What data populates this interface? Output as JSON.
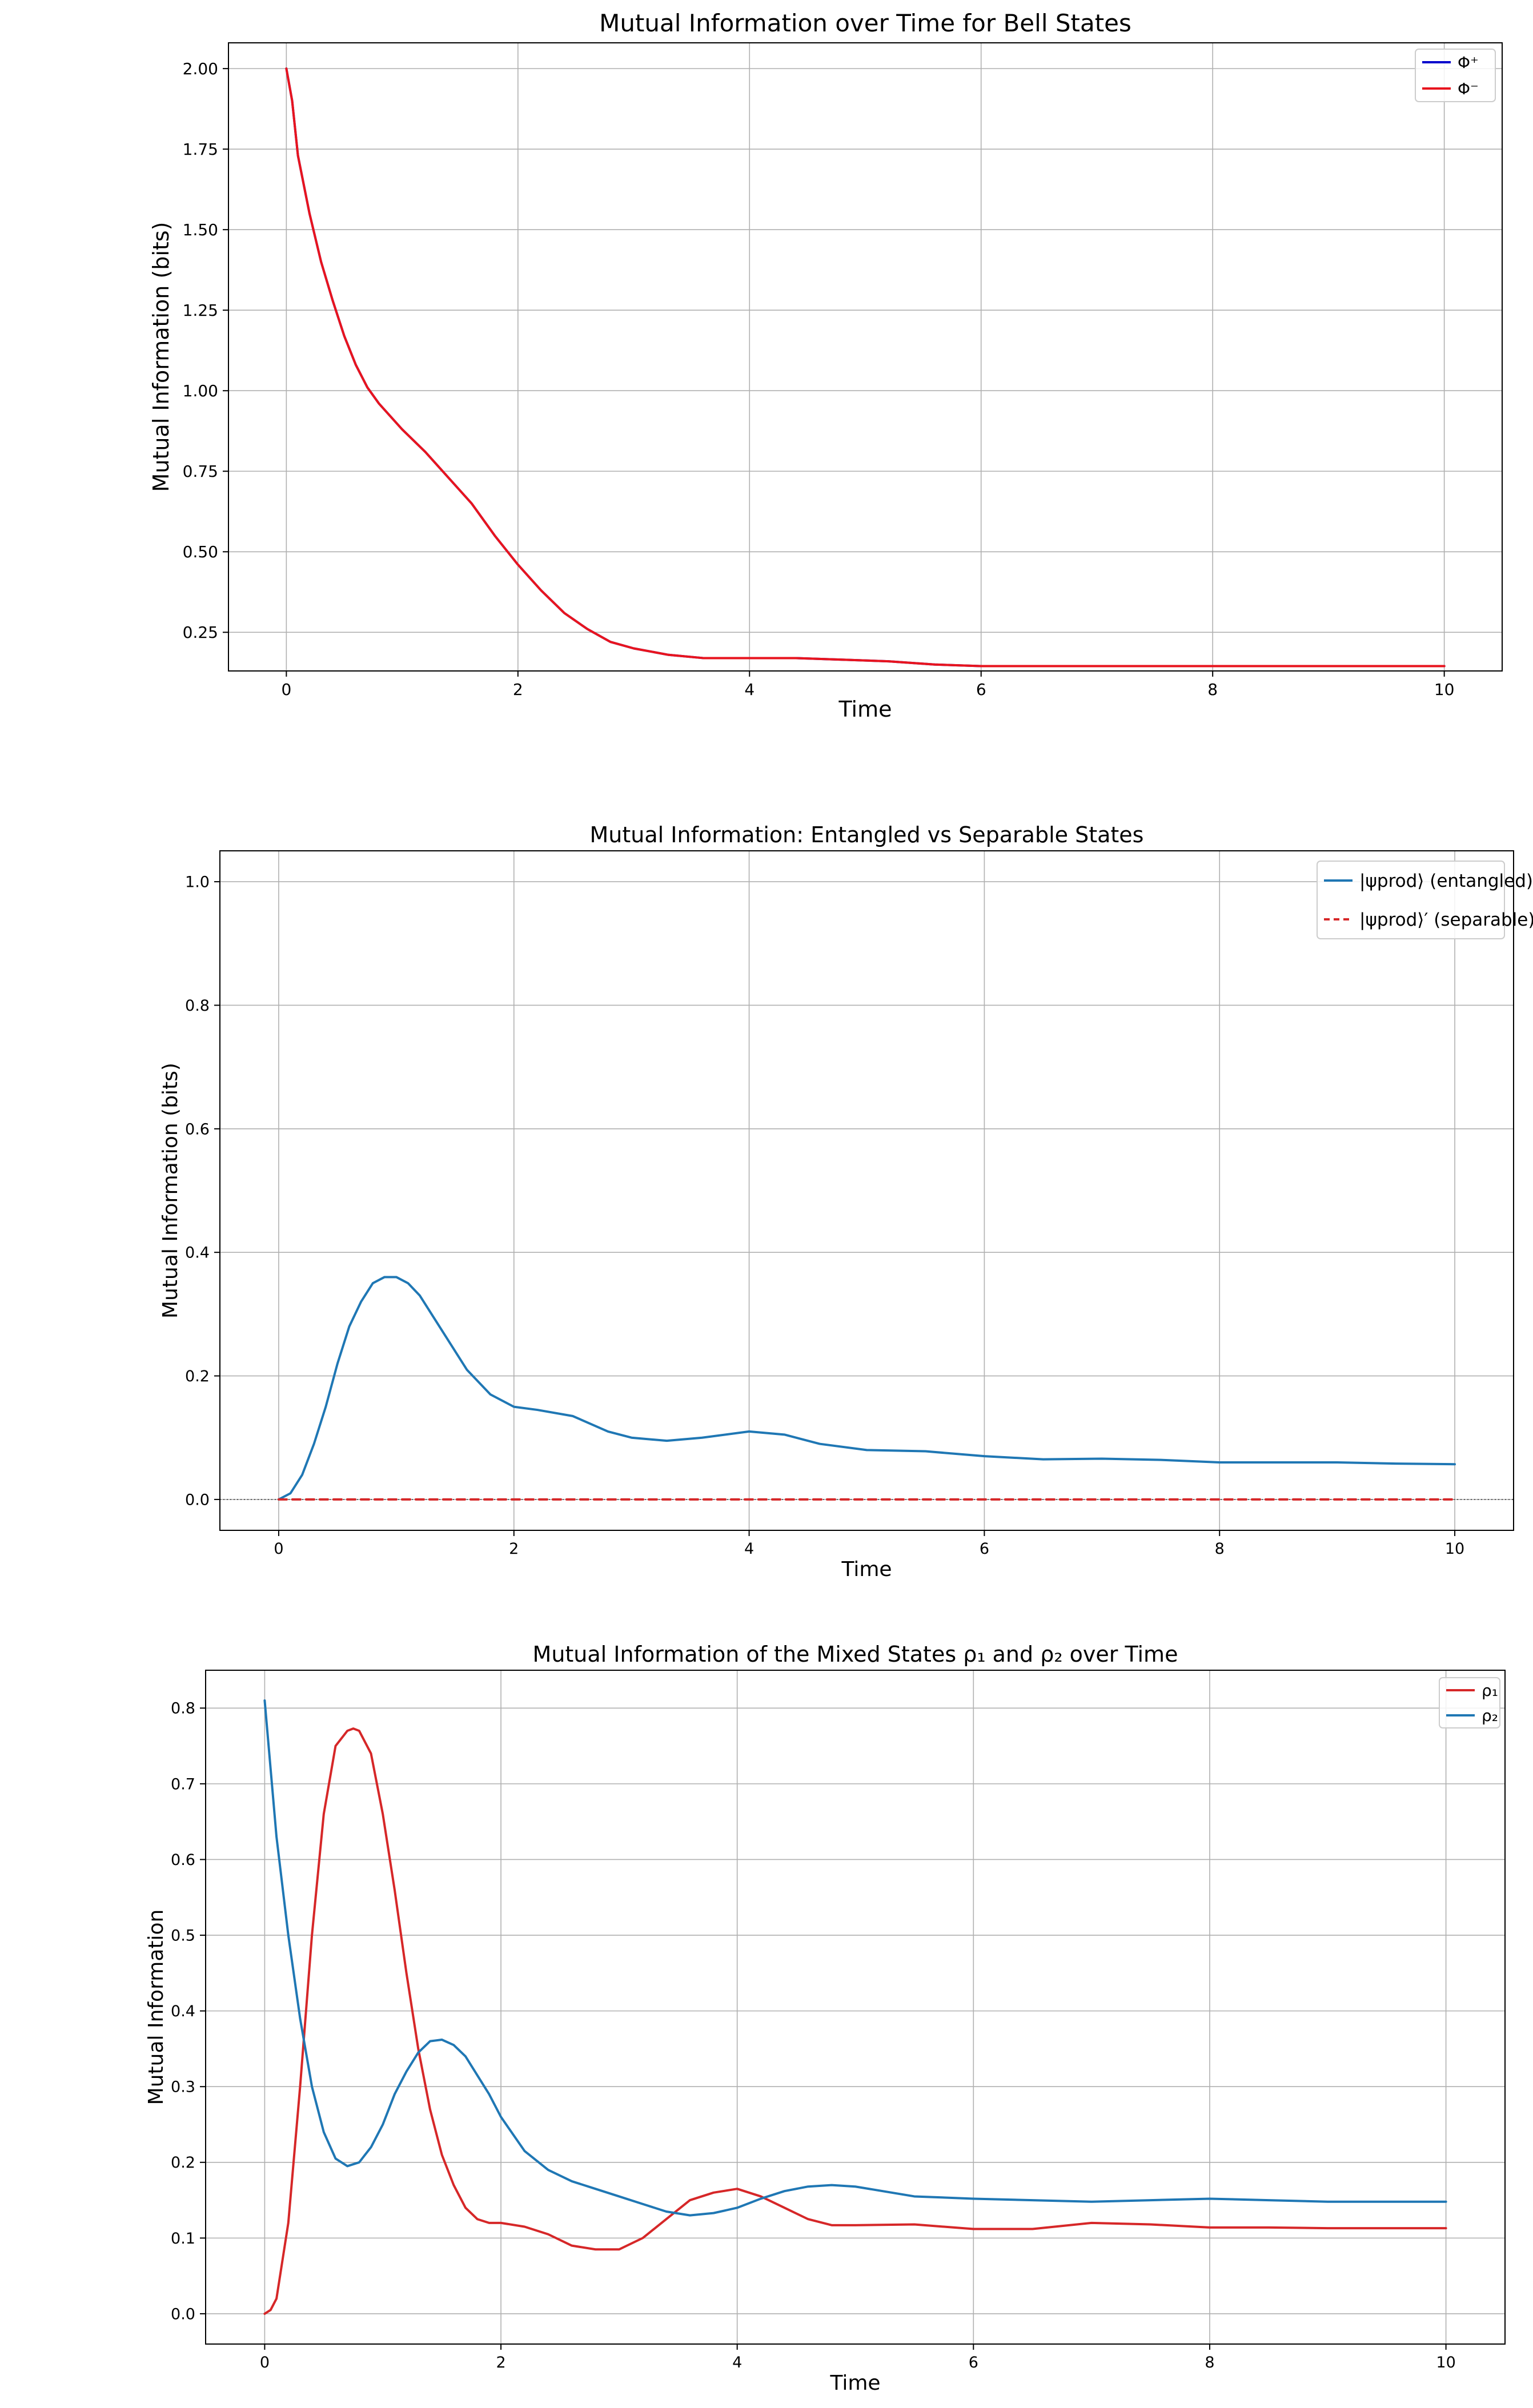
{
  "chart_data": [
    {
      "type": "line",
      "title": "Mutual Information over Time for Bell States",
      "xlabel": "Time",
      "ylabel": "Mutual Information (bits)",
      "xlim": [
        -0.5,
        10.5
      ],
      "ylim": [
        0.13,
        2.08
      ],
      "xticks": [
        0,
        2,
        4,
        6,
        8,
        10
      ],
      "xtick_labels": [
        "0",
        "2",
        "4",
        "6",
        "8",
        "10"
      ],
      "yticks": [
        0.25,
        0.5,
        0.75,
        1.0,
        1.25,
        1.5,
        1.75,
        2.0
      ],
      "ytick_labels": [
        "0.25",
        "0.50",
        "0.75",
        "1.00",
        "1.25",
        "1.50",
        "1.75",
        "2.00"
      ],
      "grid": true,
      "legend_position": "top-right",
      "series": [
        {
          "name": "Φ⁺",
          "color": "#0000cc",
          "style": "solid",
          "x": [
            0,
            0.05,
            0.1,
            0.2,
            0.3,
            0.4,
            0.5,
            0.6,
            0.7,
            0.8,
            1.0,
            1.2,
            1.4,
            1.6,
            1.8,
            2.0,
            2.2,
            2.4,
            2.6,
            2.8,
            3.0,
            3.3,
            3.6,
            4.0,
            4.4,
            4.8,
            5.2,
            5.6,
            6.0,
            6.5,
            7.0,
            7.5,
            8.0,
            8.5,
            9.0,
            9.5,
            10.0
          ],
          "y": [
            2.0,
            1.9,
            1.73,
            1.55,
            1.4,
            1.28,
            1.17,
            1.08,
            1.01,
            0.96,
            0.88,
            0.81,
            0.73,
            0.65,
            0.55,
            0.46,
            0.38,
            0.31,
            0.26,
            0.22,
            0.2,
            0.18,
            0.17,
            0.17,
            0.17,
            0.165,
            0.16,
            0.15,
            0.145,
            0.145,
            0.145,
            0.145,
            0.145,
            0.145,
            0.145,
            0.145,
            0.145
          ]
        },
        {
          "name": "Φ⁻",
          "color": "#e8141e",
          "style": "solid",
          "x": [
            0,
            0.05,
            0.1,
            0.2,
            0.3,
            0.4,
            0.5,
            0.6,
            0.7,
            0.8,
            1.0,
            1.2,
            1.4,
            1.6,
            1.8,
            2.0,
            2.2,
            2.4,
            2.6,
            2.8,
            3.0,
            3.3,
            3.6,
            4.0,
            4.4,
            4.8,
            5.2,
            5.6,
            6.0,
            6.5,
            7.0,
            7.5,
            8.0,
            8.5,
            9.0,
            9.5,
            10.0
          ],
          "y": [
            2.0,
            1.9,
            1.73,
            1.55,
            1.4,
            1.28,
            1.17,
            1.08,
            1.01,
            0.96,
            0.88,
            0.81,
            0.73,
            0.65,
            0.55,
            0.46,
            0.38,
            0.31,
            0.26,
            0.22,
            0.2,
            0.18,
            0.17,
            0.17,
            0.17,
            0.165,
            0.16,
            0.15,
            0.145,
            0.145,
            0.145,
            0.145,
            0.145,
            0.145,
            0.145,
            0.145,
            0.145
          ]
        }
      ]
    },
    {
      "type": "line",
      "title": "Mutual Information: Entangled vs Separable States",
      "xlabel": "Time",
      "ylabel": "Mutual Information (bits)",
      "xlim": [
        -0.5,
        10.5
      ],
      "ylim": [
        -0.05,
        1.05
      ],
      "xticks": [
        0,
        2,
        4,
        6,
        8,
        10
      ],
      "xtick_labels": [
        "0",
        "2",
        "4",
        "6",
        "8",
        "10"
      ],
      "yticks": [
        0.0,
        0.2,
        0.4,
        0.6,
        0.8,
        1.0
      ],
      "ytick_labels": [
        "0.0",
        "0.2",
        "0.4",
        "0.6",
        "0.8",
        "1.0"
      ],
      "grid": true,
      "legend_position": "top-right",
      "series": [
        {
          "name": "|ψprod⟩ (entangled)",
          "color": "#1f77b4",
          "style": "solid",
          "x": [
            0,
            0.1,
            0.2,
            0.3,
            0.4,
            0.5,
            0.6,
            0.7,
            0.8,
            0.9,
            1.0,
            1.1,
            1.2,
            1.4,
            1.6,
            1.8,
            2.0,
            2.2,
            2.5,
            2.8,
            3.0,
            3.3,
            3.6,
            4.0,
            4.3,
            4.6,
            5.0,
            5.5,
            6.0,
            6.5,
            7.0,
            7.5,
            8.0,
            8.5,
            9.0,
            9.5,
            10.0
          ],
          "y": [
            0.0,
            0.01,
            0.04,
            0.09,
            0.15,
            0.22,
            0.28,
            0.32,
            0.35,
            0.36,
            0.36,
            0.35,
            0.33,
            0.27,
            0.21,
            0.17,
            0.15,
            0.145,
            0.135,
            0.11,
            0.1,
            0.095,
            0.1,
            0.11,
            0.105,
            0.09,
            0.08,
            0.078,
            0.07,
            0.065,
            0.066,
            0.064,
            0.06,
            0.06,
            0.06,
            0.058,
            0.057
          ]
        },
        {
          "name": "|ψprod⟩′ (separable)",
          "color": "#d62728",
          "style": "dashed",
          "x": [
            0,
            10
          ],
          "y": [
            0.0,
            0.0
          ]
        }
      ]
    },
    {
      "type": "line",
      "title": "Mutual Information of the Mixed States ρ₁ and ρ₂ over Time",
      "xlabel": "Time",
      "ylabel": "Mutual Information",
      "xlim": [
        -0.5,
        10.5
      ],
      "ylim": [
        -0.04,
        0.85
      ],
      "xticks": [
        0,
        2,
        4,
        6,
        8,
        10
      ],
      "xtick_labels": [
        "0",
        "2",
        "4",
        "6",
        "8",
        "10"
      ],
      "yticks": [
        0.0,
        0.1,
        0.2,
        0.3,
        0.4,
        0.5,
        0.6,
        0.7,
        0.8
      ],
      "ytick_labels": [
        "0.0",
        "0.1",
        "0.2",
        "0.3",
        "0.4",
        "0.5",
        "0.6",
        "0.7",
        "0.8"
      ],
      "grid": true,
      "legend_position": "top-right",
      "series": [
        {
          "name": "ρ₁",
          "color": "#d62728",
          "style": "solid",
          "x": [
            0,
            0.05,
            0.1,
            0.2,
            0.3,
            0.4,
            0.5,
            0.6,
            0.7,
            0.75,
            0.8,
            0.9,
            1.0,
            1.1,
            1.2,
            1.3,
            1.4,
            1.5,
            1.6,
            1.7,
            1.8,
            1.9,
            2.0,
            2.2,
            2.4,
            2.6,
            2.8,
            3.0,
            3.2,
            3.4,
            3.6,
            3.8,
            4.0,
            4.2,
            4.4,
            4.6,
            4.8,
            5.0,
            5.5,
            6.0,
            6.5,
            7.0,
            7.5,
            8.0,
            8.5,
            9.0,
            9.5,
            10.0
          ],
          "y": [
            0.0,
            0.005,
            0.02,
            0.12,
            0.3,
            0.5,
            0.66,
            0.75,
            0.77,
            0.773,
            0.77,
            0.74,
            0.66,
            0.56,
            0.45,
            0.35,
            0.27,
            0.21,
            0.17,
            0.14,
            0.125,
            0.12,
            0.12,
            0.115,
            0.105,
            0.09,
            0.085,
            0.085,
            0.1,
            0.125,
            0.15,
            0.16,
            0.165,
            0.155,
            0.14,
            0.125,
            0.117,
            0.117,
            0.118,
            0.112,
            0.112,
            0.12,
            0.118,
            0.114,
            0.114,
            0.113,
            0.113,
            0.113
          ]
        },
        {
          "name": "ρ₂",
          "color": "#1f77b4",
          "style": "solid",
          "x": [
            0,
            0.05,
            0.1,
            0.2,
            0.3,
            0.4,
            0.5,
            0.6,
            0.7,
            0.8,
            0.9,
            1.0,
            1.1,
            1.2,
            1.3,
            1.4,
            1.5,
            1.6,
            1.7,
            1.8,
            1.9,
            2.0,
            2.2,
            2.4,
            2.6,
            2.8,
            3.0,
            3.2,
            3.4,
            3.6,
            3.8,
            4.0,
            4.2,
            4.4,
            4.6,
            4.8,
            5.0,
            5.5,
            6.0,
            6.5,
            7.0,
            7.5,
            8.0,
            8.5,
            9.0,
            9.5,
            10.0
          ],
          "y": [
            0.81,
            0.72,
            0.63,
            0.5,
            0.39,
            0.3,
            0.24,
            0.205,
            0.195,
            0.2,
            0.22,
            0.25,
            0.29,
            0.32,
            0.345,
            0.36,
            0.362,
            0.355,
            0.34,
            0.315,
            0.29,
            0.26,
            0.215,
            0.19,
            0.175,
            0.165,
            0.155,
            0.145,
            0.135,
            0.13,
            0.133,
            0.14,
            0.152,
            0.162,
            0.168,
            0.17,
            0.168,
            0.155,
            0.152,
            0.15,
            0.148,
            0.15,
            0.152,
            0.15,
            0.148,
            0.148,
            0.148
          ]
        }
      ]
    }
  ]
}
